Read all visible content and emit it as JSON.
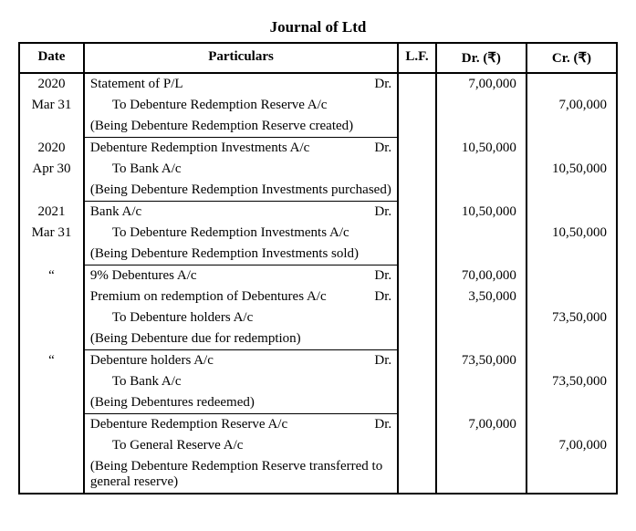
{
  "title": "Journal of Ltd",
  "headers": {
    "date": "Date",
    "particulars": "Particulars",
    "lf": "L.F.",
    "dr": "Dr. (₹)",
    "cr": "Cr. (₹)"
  },
  "rows": [
    {
      "date": "2020",
      "part": "Statement of P/L",
      "drmark": "Dr.",
      "dr": "7,00,000",
      "cr": "",
      "sep": "none"
    },
    {
      "date": "Mar 31",
      "part": "To Debenture Redemption Reserve A/c",
      "indent": 1,
      "dr": "",
      "cr": "7,00,000",
      "sep": "none"
    },
    {
      "date": "",
      "part": "(Being Debenture Redemption Reserve created)",
      "dr": "",
      "cr": "",
      "sep": "none"
    },
    {
      "date": "2020",
      "part": "Debenture Redemption Investments A/c",
      "drmark": "Dr.",
      "dr": "10,50,000",
      "cr": "",
      "sep": "part"
    },
    {
      "date": "Apr 30",
      "part": "To Bank A/c",
      "indent": 1,
      "dr": "",
      "cr": "10,50,000",
      "sep": "none"
    },
    {
      "date": "",
      "part": "(Being Debenture Redemption Investments purchased)",
      "dr": "",
      "cr": "",
      "sep": "none"
    },
    {
      "date": "2021",
      "part": "Bank A/c",
      "drmark": "Dr.",
      "dr": "10,50,000",
      "cr": "",
      "sep": "part"
    },
    {
      "date": "Mar 31",
      "part": "To Debenture Redemption Investments A/c",
      "indent": 1,
      "dr": "",
      "cr": "10,50,000",
      "sep": "none"
    },
    {
      "date": "",
      "part": "(Being Debenture Redemption Investments sold)",
      "dr": "",
      "cr": "",
      "sep": "none"
    },
    {
      "date": "“",
      "part": "9% Debentures A/c",
      "drmark": "Dr.",
      "dr": "70,00,000",
      "cr": "",
      "sep": "part"
    },
    {
      "date": "",
      "part": "Premium on redemption of Debentures A/c",
      "drmark": "Dr.",
      "dr": "3,50,000",
      "cr": "",
      "sep": "none"
    },
    {
      "date": "",
      "part": "To Debenture holders A/c",
      "indent": 1,
      "dr": "",
      "cr": "73,50,000",
      "sep": "none"
    },
    {
      "date": "",
      "part": "(Being Debenture due for redemption)",
      "dr": "",
      "cr": "",
      "sep": "none"
    },
    {
      "date": "“",
      "part": "Debenture holders A/c",
      "drmark": "Dr.",
      "dr": "73,50,000",
      "cr": "",
      "sep": "part"
    },
    {
      "date": "",
      "part": "To Bank A/c",
      "indent": 1,
      "dr": "",
      "cr": "73,50,000",
      "sep": "none"
    },
    {
      "date": "",
      "part": "(Being Debentures redeemed)",
      "dr": "",
      "cr": "",
      "sep": "none"
    },
    {
      "date": "",
      "part": "Debenture Redemption Reserve A/c",
      "drmark": "Dr.",
      "dr": "7,00,000",
      "cr": "",
      "sep": "part"
    },
    {
      "date": "",
      "part": "To General Reserve A/c",
      "indent": 1,
      "dr": "",
      "cr": "7,00,000",
      "sep": "none"
    },
    {
      "date": "",
      "part": "(Being Debenture Redemption Reserve transferred to general reserve)",
      "dr": "",
      "cr": "",
      "sep": "none"
    }
  ]
}
